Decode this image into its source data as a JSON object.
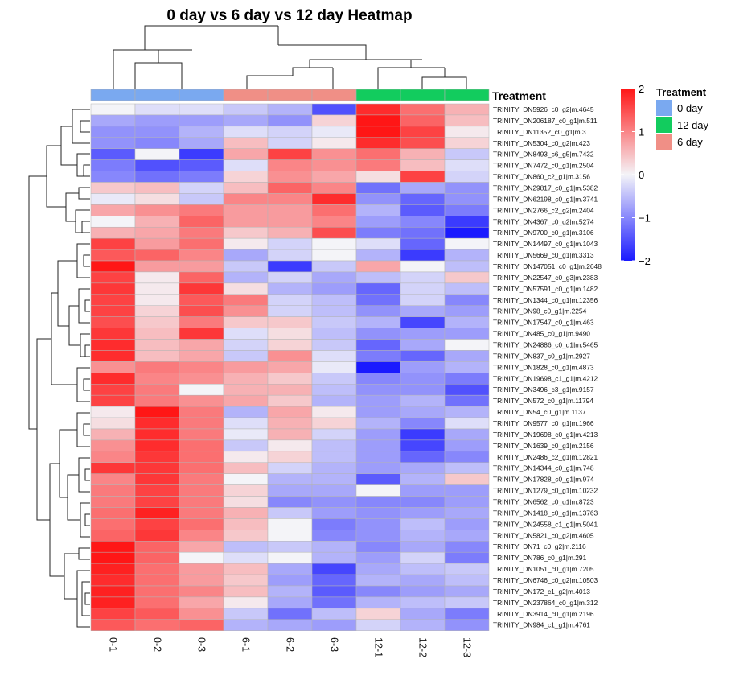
{
  "chart_data": {
    "type": "heatmap",
    "title": "0 day vs 6 day vs 12 day Heatmap",
    "columns": [
      "0-1",
      "0-2",
      "0-3",
      "6-1",
      "6-2",
      "6-3",
      "12-1",
      "12-2",
      "12-3"
    ],
    "column_groups": [
      "0 day",
      "0 day",
      "0 day",
      "6 day",
      "6 day",
      "6 day",
      "12 day",
      "12 day",
      "12 day"
    ],
    "rows": [
      "TRINITY_DN5926_c0_g2|m.4645",
      "TRINITY_DN206187_c0_g1|m.511",
      "TRINITY_DN11352_c0_g1|m.3",
      "TRINITY_DN5304_c0_g2|m.423",
      "TRINITY_DN8493_c6_g5|m.7432",
      "TRINITY_DN7472_c0_g1|m.2504",
      "TRINITY_DN860_c2_g1|m.3156",
      "TRINITY_DN29817_c0_g1|m.5382",
      "TRINITY_DN62198_c0_g1|m.3741",
      "TRINITY_DN2766_c2_g2|m.2404",
      "TRINITY_DN4367_c0_g2|m.5274",
      "TRINITY_DN9700_c0_g1|m.3106",
      "TRINITY_DN14497_c0_g1|m.1043",
      "TRINITY_DN5669_c0_g1|m.3313",
      "TRINITY_DN147051_c0_g1|m.2648",
      "TRINITY_DN22547_c0_g3|m.2383",
      "TRINITY_DN57591_c0_g1|m.1482",
      "TRINITY_DN1344_c0_g1|m.12356",
      "TRINITY_DN98_c0_g1|m.2254",
      "TRINITY_DN17547_c0_g1|m.463",
      "TRINITY_DN485_c0_g1|m.9490",
      "TRINITY_DN24886_c0_g1|m.5465",
      "TRINITY_DN837_c0_g1|m.2927",
      "TRINITY_DN1828_c0_g1|m.4873",
      "TRINITY_DN19698_c1_g1|m.4212",
      "TRINITY_DN3496_c3_g1|m.9157",
      "TRINITY_DN572_c0_g1|m.11794",
      "TRINITY_DN54_c0_g1|m.1137",
      "TRINITY_DN9577_c0_g1|m.1966",
      "TRINITY_DN19698_c0_g1|m.4213",
      "TRINITY_DN1639_c0_g1|m.2156",
      "TRINITY_DN2486_c2_g1|m.12821",
      "TRINITY_DN14344_c0_g1|m.748",
      "TRINITY_DN17828_c0_g1|m.974",
      "TRINITY_DN1279_c0_g1|m.10232",
      "TRINITY_DN6562_c0_g1|m.8723",
      "TRINITY_DN1418_c0_g1|m.13763",
      "TRINITY_DN24558_c1_g1|m.5041",
      "TRINITY_DN5821_c0_g2|m.4605",
      "TRINITY_DN71_c0_g2|m.2116",
      "TRINITY_DN786_c0_g1|m.291",
      "TRINITY_DN1051_c0_g1|m.7205",
      "TRINITY_DN6746_c0_g2|m.10503",
      "TRINITY_DN172_c1_g2|m.4013",
      "TRINITY_DN237864_c0_g1|m.312",
      "TRINITY_DN3914_c0_g1|m.2196",
      "TRINITY_DN984_c1_g1|m.4761"
    ],
    "values": [
      [
        0.0,
        -0.2,
        -0.2,
        -0.4,
        -0.6,
        -1.5,
        1.8,
        1.2,
        0.6
      ],
      [
        -0.7,
        -0.8,
        -0.8,
        -0.7,
        -0.9,
        0.3,
        2.2,
        1.3,
        0.5
      ],
      [
        -0.9,
        -0.9,
        -0.6,
        -0.2,
        -0.3,
        -0.1,
        2.0,
        1.6,
        0.1
      ],
      [
        -0.9,
        -1.0,
        -0.7,
        0.5,
        -0.3,
        0.1,
        1.8,
        1.5,
        0.3
      ],
      [
        -1.4,
        0.0,
        -1.7,
        0.7,
        1.6,
        0.9,
        1.2,
        0.6,
        -0.4
      ],
      [
        -1.1,
        -1.5,
        -1.4,
        -0.2,
        1.0,
        0.9,
        1.1,
        0.5,
        -0.2
      ],
      [
        -1.0,
        -1.2,
        -1.1,
        0.3,
        0.9,
        0.7,
        0.2,
        1.6,
        -0.3
      ],
      [
        0.4,
        0.5,
        -0.3,
        0.5,
        1.3,
        1.0,
        -1.2,
        -0.7,
        -0.9
      ],
      [
        -0.1,
        0.2,
        -0.4,
        1.0,
        1.0,
        1.8,
        -0.9,
        -1.3,
        -0.9
      ],
      [
        0.7,
        0.9,
        1.1,
        0.8,
        0.8,
        1.2,
        -0.6,
        -1.4,
        -1.1
      ],
      [
        0.0,
        0.6,
        1.3,
        0.8,
        0.8,
        1.0,
        -0.8,
        -1.0,
        -1.7
      ],
      [
        0.6,
        0.7,
        1.1,
        0.4,
        0.6,
        1.5,
        -1.1,
        -1.2,
        -2.0
      ],
      [
        1.6,
        0.8,
        1.2,
        0.1,
        -0.3,
        0.0,
        -0.2,
        -1.3,
        0.0
      ],
      [
        1.4,
        1.3,
        1.0,
        -0.7,
        -0.3,
        0.0,
        -0.6,
        -1.7,
        -0.6
      ],
      [
        2.0,
        0.8,
        0.8,
        -0.4,
        -1.7,
        -0.4,
        0.7,
        0.0,
        -0.5
      ],
      [
        1.6,
        0.1,
        1.3,
        -0.6,
        -0.3,
        -0.7,
        -0.5,
        -0.3,
        0.4
      ],
      [
        1.7,
        0.1,
        1.7,
        0.2,
        -0.6,
        -0.8,
        -1.3,
        -0.3,
        -0.5
      ],
      [
        1.6,
        0.1,
        1.4,
        1.1,
        -0.3,
        -0.5,
        -1.2,
        -0.3,
        -1.0
      ],
      [
        1.6,
        0.3,
        1.5,
        0.9,
        -0.3,
        -0.5,
        -0.9,
        -0.7,
        -0.8
      ],
      [
        1.5,
        0.4,
        1.1,
        0.4,
        0.4,
        -0.4,
        -0.6,
        -1.6,
        -0.6
      ],
      [
        1.7,
        0.5,
        1.7,
        -0.2,
        0.2,
        -0.5,
        -0.9,
        -0.8,
        -0.8
      ],
      [
        1.8,
        0.5,
        0.7,
        -0.3,
        0.3,
        -0.4,
        -1.3,
        -0.7,
        0.0
      ],
      [
        1.8,
        0.5,
        0.7,
        -0.4,
        0.9,
        -0.2,
        -1.1,
        -1.3,
        -0.7
      ],
      [
        0.9,
        1.1,
        1.0,
        0.8,
        0.7,
        -0.1,
        -2.2,
        -0.8,
        -0.6
      ],
      [
        1.8,
        1.0,
        0.9,
        0.6,
        0.4,
        -0.4,
        -1.0,
        -0.9,
        -1.1
      ],
      [
        1.6,
        1.1,
        0.0,
        0.6,
        0.6,
        -0.5,
        -0.9,
        -0.9,
        -1.5
      ],
      [
        1.6,
        1.1,
        0.9,
        0.7,
        0.4,
        -0.6,
        -0.8,
        -0.6,
        -1.2
      ],
      [
        0.1,
        2.0,
        1.1,
        -0.6,
        0.7,
        0.1,
        -0.8,
        -0.7,
        -0.6
      ],
      [
        0.2,
        1.8,
        1.1,
        -0.2,
        0.6,
        0.3,
        -0.6,
        -1.0,
        -0.2
      ],
      [
        0.6,
        1.8,
        1.1,
        -0.1,
        0.6,
        -0.3,
        -0.8,
        -1.7,
        -0.7
      ],
      [
        0.9,
        1.8,
        1.2,
        -0.4,
        0.1,
        -0.5,
        -0.8,
        -1.6,
        -0.8
      ],
      [
        1.0,
        1.7,
        1.2,
        0.1,
        0.3,
        -0.5,
        -0.8,
        -1.3,
        -1.0
      ],
      [
        1.7,
        1.7,
        1.2,
        0.5,
        -0.3,
        -0.6,
        -0.8,
        -0.7,
        -0.5
      ],
      [
        1.0,
        1.7,
        1.1,
        0.0,
        -0.6,
        -0.6,
        -1.4,
        -0.6,
        0.4
      ],
      [
        1.1,
        1.6,
        1.1,
        0.3,
        -0.7,
        -0.7,
        0.0,
        -0.8,
        -0.8
      ],
      [
        1.1,
        1.6,
        1.1,
        0.2,
        -1.0,
        -0.9,
        -1.0,
        -1.0,
        -0.8
      ],
      [
        1.2,
        1.9,
        1.1,
        0.6,
        -0.4,
        -0.8,
        -0.9,
        -0.8,
        -0.7
      ],
      [
        1.2,
        1.6,
        1.2,
        0.5,
        0.0,
        -1.1,
        -0.9,
        -0.5,
        -0.8
      ],
      [
        1.3,
        1.7,
        1.0,
        0.4,
        0.0,
        -1.0,
        -0.9,
        -0.6,
        -0.7
      ],
      [
        2.1,
        1.3,
        0.7,
        -0.5,
        -0.4,
        -0.6,
        -1.0,
        -0.7,
        -1.0
      ],
      [
        2.0,
        1.3,
        0.0,
        -0.2,
        0.0,
        -0.6,
        -0.8,
        -0.3,
        -1.1
      ],
      [
        1.9,
        1.2,
        0.8,
        0.5,
        -0.7,
        -1.6,
        -0.7,
        -0.5,
        -0.4
      ],
      [
        1.8,
        1.2,
        0.8,
        0.4,
        -0.8,
        -1.3,
        -0.6,
        -0.7,
        -0.5
      ],
      [
        1.9,
        1.2,
        1.0,
        0.5,
        -0.6,
        -1.4,
        -1.0,
        -0.8,
        -0.7
      ],
      [
        1.9,
        1.2,
        0.7,
        0.1,
        -0.7,
        -1.2,
        -0.6,
        -0.5,
        -0.4
      ],
      [
        1.6,
        1.4,
        0.9,
        -0.4,
        -1.2,
        -0.5,
        0.3,
        -0.7,
        -1.1
      ],
      [
        1.4,
        1.2,
        1.3,
        -0.6,
        -0.7,
        -0.8,
        -0.3,
        -0.6,
        -0.9
      ]
    ],
    "color_range": [
      -2,
      2
    ],
    "colorbar_ticks": [
      "2",
      "1",
      "0",
      "−1",
      "−2"
    ],
    "colorbar_tick_values": [
      2,
      1,
      0,
      -1,
      -2
    ],
    "annotation_label": "Treatment",
    "legend": {
      "title": "Treatment",
      "items": [
        {
          "label": "0 day",
          "color": "#7aa9f0"
        },
        {
          "label": "12 day",
          "color": "#12cc5e"
        },
        {
          "label": "6 day",
          "color": "#f08f86"
        }
      ]
    },
    "colors": {
      "low": "#1a1aff",
      "mid": "#f4f4f8",
      "high": "#ff1616"
    },
    "group_colors": {
      "0 day": "#7aa9f0",
      "6 day": "#f08f86",
      "12 day": "#12cc5e"
    }
  }
}
